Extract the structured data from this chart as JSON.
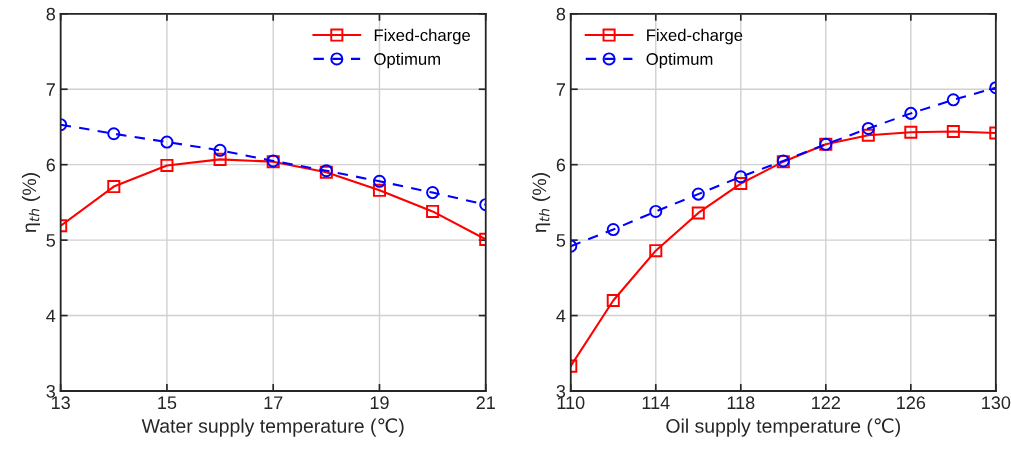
{
  "chart_data": [
    {
      "type": "line",
      "xlabel": "Water supply temperature (℃)",
      "ylabel": "η$_{th}$ (%)",
      "x": [
        13,
        14,
        15,
        16,
        17,
        18,
        19,
        20,
        21
      ],
      "xlim": [
        13,
        21
      ],
      "xticks": [
        13,
        15,
        17,
        19,
        21
      ],
      "ylim": [
        3,
        8
      ],
      "yticks": [
        3,
        4,
        5,
        6,
        7,
        8
      ],
      "grid": true,
      "legend": "top right",
      "series": [
        {
          "name": "Fixed-charge",
          "color": "#ff0000",
          "marker": "square",
          "line_style": "solid",
          "values": [
            5.19,
            5.71,
            5.99,
            6.07,
            6.04,
            5.9,
            5.66,
            5.38,
            5.01
          ]
        },
        {
          "name": "Optimum",
          "color": "#0000ff",
          "marker": "circle",
          "line_style": "dashed",
          "values": [
            6.53,
            6.41,
            6.3,
            6.19,
            6.05,
            5.92,
            5.78,
            5.63,
            5.47
          ]
        }
      ]
    },
    {
      "type": "line",
      "xlabel": "Oil supply temperature (℃)",
      "ylabel": "η$_{th}$ (%)",
      "x": [
        110,
        112,
        114,
        116,
        118,
        120,
        122,
        124,
        126,
        128,
        130
      ],
      "xlim": [
        110,
        130
      ],
      "xticks": [
        110,
        114,
        118,
        122,
        126,
        130
      ],
      "ylim": [
        3,
        8
      ],
      "yticks": [
        3,
        4,
        5,
        6,
        7,
        8
      ],
      "grid": true,
      "legend": "top left",
      "series": [
        {
          "name": "Fixed-charge",
          "color": "#ff0000",
          "marker": "square",
          "line_style": "solid",
          "values": [
            3.33,
            4.2,
            4.86,
            5.36,
            5.75,
            6.04,
            6.27,
            6.39,
            6.43,
            6.44,
            6.42
          ]
        },
        {
          "name": "Optimum",
          "color": "#0000ff",
          "marker": "circle",
          "line_style": "dashed",
          "values": [
            4.92,
            5.14,
            5.38,
            5.61,
            5.84,
            6.05,
            6.27,
            6.48,
            6.68,
            6.86,
            7.02
          ]
        }
      ]
    }
  ]
}
